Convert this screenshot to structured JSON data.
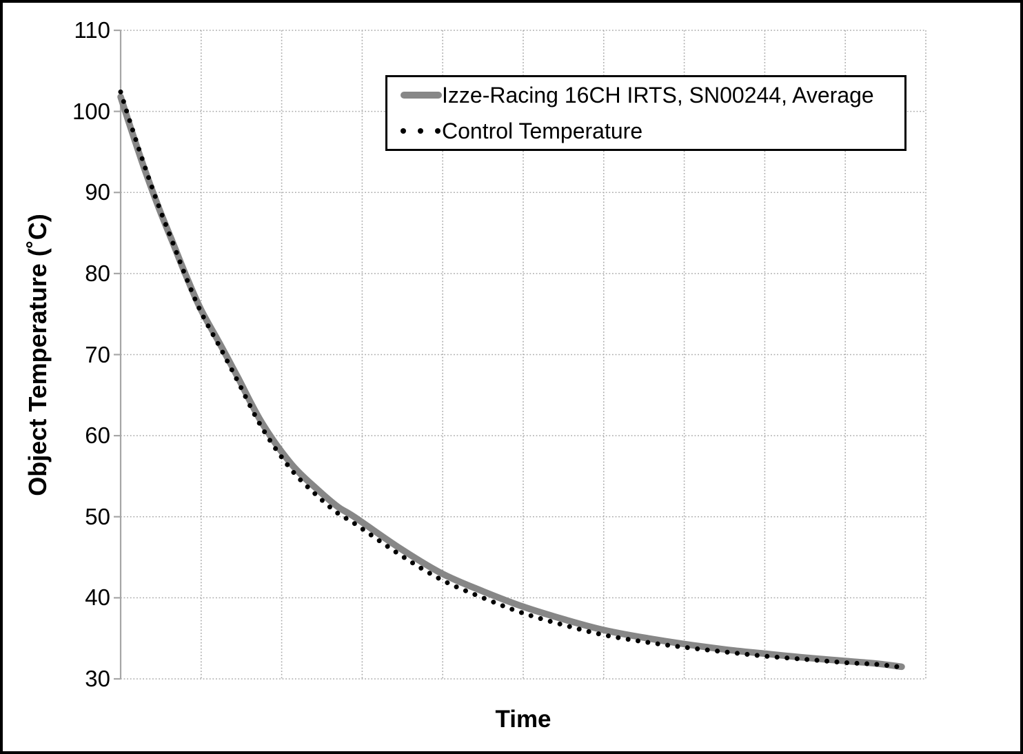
{
  "figure": {
    "background": "#ffffff",
    "border_color": "#000000"
  },
  "legend": {
    "items": [
      {
        "label": "Izze-Racing 16CH IRTS, SN00244, Average",
        "marker": "thick-gray-line",
        "color": "#878787"
      },
      {
        "label": "Control Temperature",
        "marker": "round-black-dots",
        "color": "#000000"
      }
    ],
    "position": "top-right",
    "border_color": "#000000"
  },
  "chart_data": {
    "type": "line",
    "title": "",
    "xlabel": "Time",
    "ylabel": "Object Temperature (˚C)",
    "ylim": [
      30,
      110
    ],
    "yticks": [
      110,
      100,
      90,
      80,
      70,
      60,
      50,
      40,
      30
    ],
    "x_tick_labels_visible": false,
    "x_gridline_intervals": 10,
    "xlim_units": [
      0,
      100
    ],
    "grid": "dotted",
    "colors": {
      "average_series": "#878787",
      "control_series": "#000000",
      "axis": "#a6a6a6",
      "gridline": "#aaaaaa",
      "text": "#000000"
    },
    "series": [
      {
        "name": "Izze-Racing 16CH IRTS, SN00244, Average",
        "style": "solid-thick",
        "color": "#878787",
        "points": [
          [
            0,
            101.8
          ],
          [
            1.3,
            97.8
          ],
          [
            3.0,
            92.8
          ],
          [
            4.7,
            88.2
          ],
          [
            6.4,
            84.0
          ],
          [
            8.1,
            79.8
          ],
          [
            10.0,
            75.5
          ],
          [
            12.4,
            71.2
          ],
          [
            14.5,
            67.3
          ],
          [
            17.6,
            61.5
          ],
          [
            21.2,
            56.5
          ],
          [
            24.4,
            53.4
          ],
          [
            27.0,
            51.2
          ],
          [
            29.0,
            50.0
          ],
          [
            34.7,
            46.1
          ],
          [
            39.9,
            43.0
          ],
          [
            45.0,
            40.8
          ],
          [
            50.0,
            38.9
          ],
          [
            55.2,
            37.3
          ],
          [
            60.1,
            36.0
          ],
          [
            65.5,
            35.0
          ],
          [
            70.0,
            34.3
          ],
          [
            75.3,
            33.6
          ],
          [
            80.1,
            33.1
          ],
          [
            85.2,
            32.6
          ],
          [
            90.1,
            32.2
          ],
          [
            93.8,
            31.9
          ],
          [
            97.0,
            31.5
          ]
        ]
      },
      {
        "name": "Control Temperature",
        "style": "round-dotted",
        "color": "#000000",
        "points": [
          [
            0,
            102.4
          ],
          [
            1.3,
            98.3
          ],
          [
            3.0,
            93.2
          ],
          [
            4.7,
            88.4
          ],
          [
            6.4,
            84.0
          ],
          [
            8.1,
            79.6
          ],
          [
            10.0,
            75.2
          ],
          [
            12.4,
            70.8
          ],
          [
            14.5,
            66.8
          ],
          [
            17.6,
            60.9
          ],
          [
            21.2,
            55.8
          ],
          [
            24.4,
            52.6
          ],
          [
            27.0,
            50.4
          ],
          [
            29.0,
            49.2
          ],
          [
            34.7,
            45.3
          ],
          [
            39.9,
            42.2
          ],
          [
            45.0,
            40.0
          ],
          [
            50.0,
            38.1
          ],
          [
            55.2,
            36.6
          ],
          [
            60.1,
            35.4
          ],
          [
            65.5,
            34.5
          ],
          [
            70.0,
            33.9
          ],
          [
            75.3,
            33.3
          ],
          [
            80.1,
            32.8
          ],
          [
            85.2,
            32.4
          ],
          [
            90.1,
            32.0
          ],
          [
            93.8,
            31.8
          ],
          [
            96.5,
            31.5
          ]
        ]
      }
    ]
  }
}
